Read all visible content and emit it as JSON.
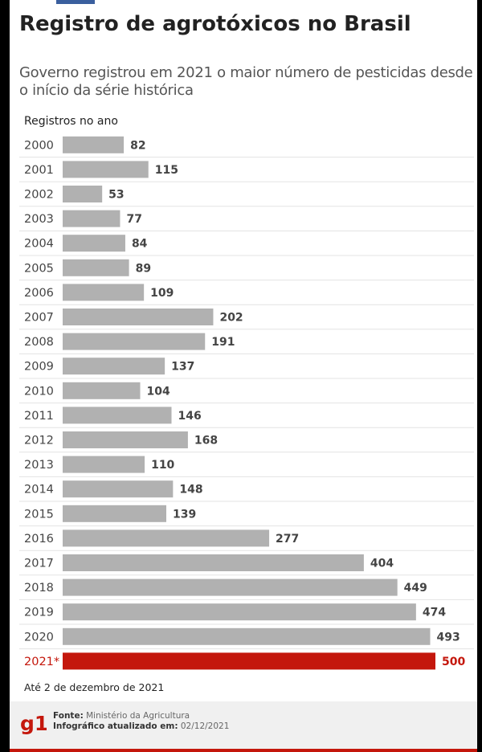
{
  "title": "Registro de agrotóxicos no Brasil",
  "subtitle": "Governo registrou em 2021 o maior número de pesticidas desde o início da série histórica",
  "note": "Até 2 de dezembro de 2021",
  "footer": {
    "logo_text": "g1",
    "source_label": "Fonte:",
    "source_value": "Ministério da Agricultura",
    "updated_label": "Infográfico atualizado em:",
    "updated_value": "02/12/2021"
  },
  "colors": {
    "bar": "#b1b1b1",
    "highlight": "#c4170c",
    "text": "#444444",
    "gridline": "#e3e3e3"
  },
  "chart_data": {
    "type": "bar",
    "orientation": "horizontal",
    "title": "Registro de agrotóxicos no Brasil",
    "xlabel": "",
    "ylabel": "Registros no ano",
    "categories": [
      "2000",
      "2001",
      "2002",
      "2003",
      "2004",
      "2005",
      "2006",
      "2007",
      "2008",
      "2009",
      "2010",
      "2011",
      "2012",
      "2013",
      "2014",
      "2015",
      "2016",
      "2017",
      "2018",
      "2019",
      "2020",
      "2021*"
    ],
    "values": [
      82,
      115,
      53,
      77,
      84,
      89,
      109,
      202,
      191,
      137,
      104,
      146,
      168,
      110,
      148,
      139,
      277,
      404,
      449,
      474,
      493,
      500
    ],
    "highlight_category": "2021*",
    "xlim": [
      0,
      500
    ],
    "grid": false,
    "data_labels": true
  }
}
